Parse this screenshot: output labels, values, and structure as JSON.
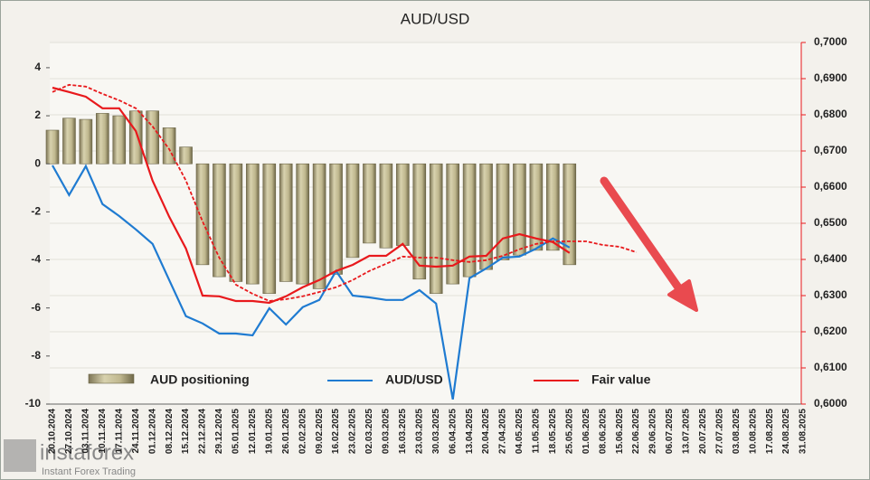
{
  "chart_data": {
    "type": "bar_line",
    "title": "AUD/USD",
    "categories": [
      "20.10.2024",
      "27.10.2024",
      "03.11.2024",
      "10.11.2024",
      "17.11.2024",
      "24.11.2024",
      "01.12.2024",
      "08.12.2024",
      "15.12.2024",
      "22.12.2024",
      "29.12.2024",
      "05.01.2025",
      "12.01.2025",
      "19.01.2025",
      "26.01.2025",
      "02.02.2025",
      "09.02.2025",
      "16.02.2025",
      "23.02.2025",
      "02.03.2025",
      "09.03.2025",
      "16.03.2025",
      "23.03.2025",
      "30.03.2025",
      "06.04.2025",
      "13.04.2025",
      "20.04.2025",
      "27.04.2025",
      "04.05.2025",
      "11.05.2025",
      "18.05.2025",
      "25.05.2025",
      "01.06.2025",
      "08.06.2025",
      "15.06.2025",
      "22.06.2025",
      "29.06.2025",
      "06.07.2025",
      "13.07.2025",
      "20.07.2025",
      "27.07.2025",
      "03.08.2025",
      "10.08.2025",
      "17.08.2025",
      "24.08.2025",
      "31.08.2025"
    ],
    "series": [
      {
        "name": "AUD positioning",
        "kind": "bar",
        "color": "#b3ab80",
        "values": [
          1.4,
          1.9,
          1.85,
          2.1,
          2.0,
          2.2,
          2.2,
          1.5,
          0.7,
          -4.2,
          -4.7,
          -4.9,
          -5.0,
          -5.4,
          -4.9,
          -5.0,
          -5.2,
          -4.6,
          -3.9,
          -3.3,
          -3.5,
          -3.4,
          -4.8,
          -5.4,
          -5.0,
          -4.7,
          -4.4,
          -4.0,
          -3.8,
          -3.6,
          -3.6,
          -4.2,
          null,
          null,
          null,
          null,
          null,
          null,
          null,
          null,
          null,
          null,
          null,
          null,
          null,
          null
        ]
      },
      {
        "name": "AUD/USD",
        "kind": "line",
        "axis": "y2",
        "color": "#1f7bd1",
        "values": [
          0.666,
          0.6578,
          0.6658,
          0.6553,
          0.652,
          0.6483,
          0.6443,
          0.6343,
          0.6243,
          0.6223,
          0.6195,
          0.6195,
          0.619,
          0.6265,
          0.622,
          0.6268,
          0.6288,
          0.6368,
          0.63,
          0.6295,
          0.6288,
          0.6288,
          0.6315,
          0.6278,
          0.6013,
          0.6348,
          0.6375,
          0.6405,
          0.6408,
          0.643,
          0.6458,
          0.6433,
          null,
          null,
          null,
          null,
          null,
          null,
          null,
          null,
          null,
          null,
          null,
          null,
          null,
          null
        ]
      },
      {
        "name": "Fair value",
        "kind": "line",
        "axis": "y2",
        "color": "#e8191c",
        "values": [
          0.6875,
          0.6863,
          0.685,
          0.6818,
          0.6818,
          0.6755,
          0.6618,
          0.6518,
          0.643,
          0.63,
          0.6298,
          0.6285,
          0.6285,
          0.628,
          0.6298,
          0.6323,
          0.6343,
          0.6368,
          0.6385,
          0.641,
          0.641,
          0.6443,
          0.6383,
          0.638,
          0.6383,
          0.6408,
          0.641,
          0.6458,
          0.647,
          0.6458,
          0.6448,
          0.6418,
          null,
          null,
          null,
          null,
          null,
          null,
          null,
          null,
          null,
          null,
          null,
          null,
          null,
          null
        ]
      },
      {
        "kind": "line",
        "axis": "y2",
        "color": "#e8191c",
        "style": "dashed",
        "values": [
          0.6863,
          0.6883,
          0.6878,
          0.6858,
          0.684,
          0.6818,
          0.6768,
          0.6705,
          0.6618,
          0.6505,
          0.6405,
          0.633,
          0.6305,
          0.6285,
          0.629,
          0.6298,
          0.631,
          0.6323,
          0.6343,
          0.6368,
          0.6388,
          0.6408,
          0.6405,
          0.6405,
          0.6398,
          0.6393,
          0.6398,
          0.641,
          0.6428,
          0.6443,
          0.645,
          0.645,
          0.645,
          0.644,
          0.6435,
          0.642,
          null,
          null,
          null,
          null,
          null,
          null,
          null,
          null,
          null,
          null
        ]
      }
    ],
    "ylim": [
      -10,
      5.05
    ],
    "yticks": [
      -10,
      -8,
      -6,
      -4,
      -2,
      0,
      2,
      4
    ],
    "y2lim": [
      0.6,
      0.7
    ],
    "y2ticks": [
      {
        "value": 0.6,
        "label": "0,6000"
      },
      {
        "value": 0.61,
        "label": "0,6100"
      },
      {
        "value": 0.62,
        "label": "0,6200"
      },
      {
        "value": 0.63,
        "label": "0,6300"
      },
      {
        "value": 0.64,
        "label": "0,6400"
      },
      {
        "value": 0.65,
        "label": "0,6500"
      },
      {
        "value": 0.66,
        "label": "0,6600"
      },
      {
        "value": 0.67,
        "label": "0,6700"
      },
      {
        "value": 0.68,
        "label": "0,6800"
      },
      {
        "value": 0.69,
        "label": "0,6900"
      },
      {
        "value": 0.7,
        "label": "0,7000"
      }
    ],
    "grid": true,
    "legend": "bottom"
  },
  "logo": {
    "name": "instaforex",
    "tagline": "Instant Forex Trading"
  }
}
